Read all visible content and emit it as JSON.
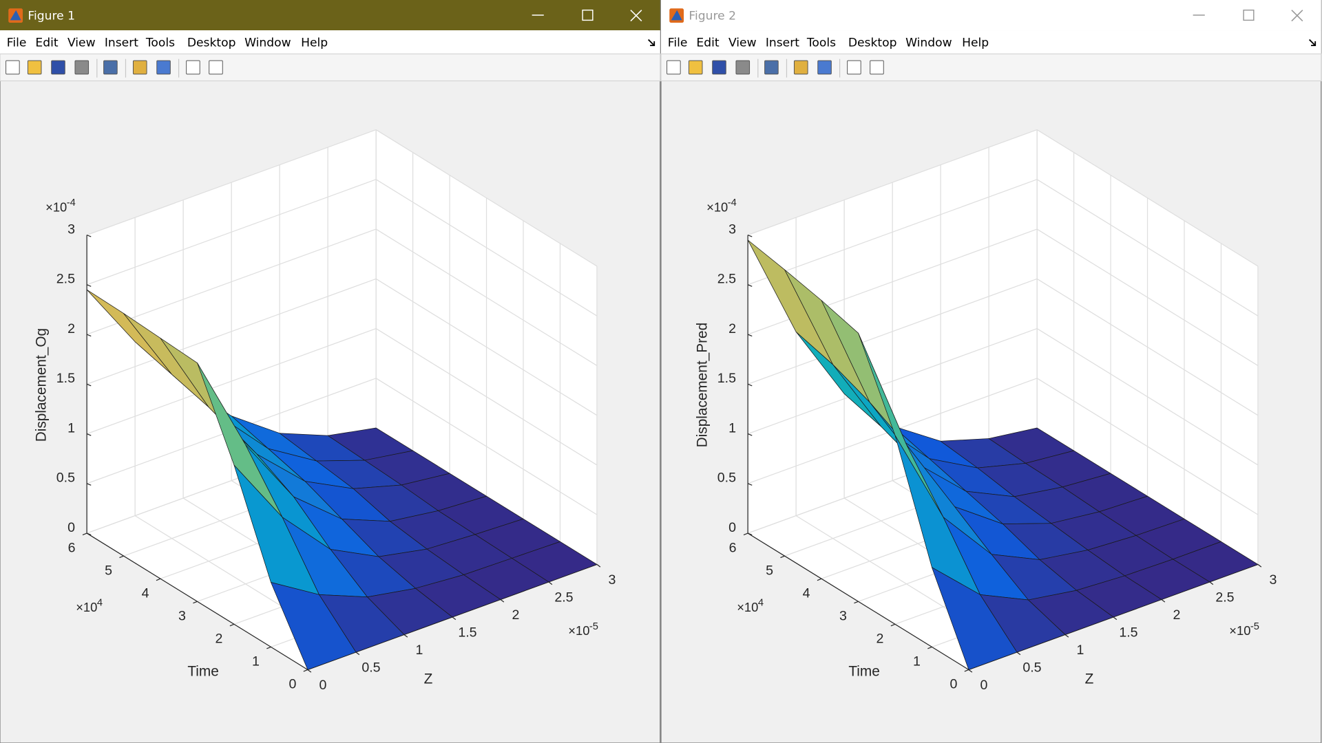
{
  "windows": [
    {
      "title": "Figure 1",
      "title_bar": {
        "color": "#6b6219",
        "text_color": "#ffffff",
        "icon_color": "#ffffff"
      },
      "menu": [
        "File",
        "Edit",
        "View",
        "Insert",
        "Tools",
        "Desktop",
        "Window",
        "Help"
      ],
      "chart_data": {
        "type": "surface",
        "xlabel": "Z",
        "ylabel": "Time",
        "zlabel": "Displacement_Og",
        "x": [
          0,
          0.5,
          1,
          1.5,
          2,
          2.5,
          3
        ],
        "y": [
          0,
          1,
          2,
          3,
          4,
          5,
          6
        ],
        "values": [
          [
            0,
            0,
            0,
            0,
            0,
            0,
            0
          ],
          [
            0.65,
            0.35,
            0.15,
            0.06,
            0.02,
            0.01,
            0
          ],
          [
            1.6,
            0.9,
            0.4,
            0.15,
            0.05,
            0.02,
            0
          ],
          [
            2.4,
            1.4,
            0.7,
            0.3,
            0.1,
            0.03,
            0
          ],
          [
            2.42,
            1.55,
            0.9,
            0.45,
            0.2,
            0.06,
            0
          ],
          [
            2.44,
            1.65,
            1.05,
            0.55,
            0.25,
            0.08,
            0
          ],
          [
            2.45,
            1.75,
            1.15,
            0.65,
            0.3,
            0.1,
            0
          ]
        ],
        "xlim": [
          0,
          3
        ],
        "ylim": [
          0,
          6
        ],
        "zlim": [
          0,
          3
        ],
        "xticks": [
          0,
          0.5,
          1,
          1.5,
          2,
          2.5,
          3
        ],
        "yticks": [
          0,
          1,
          2,
          3,
          4,
          5,
          6
        ],
        "zticks": [
          0,
          0.5,
          1,
          1.5,
          2,
          2.5,
          3
        ],
        "x_exponent": {
          "base": "×10",
          "power": "-5"
        },
        "y_exponent": {
          "base": "×10",
          "power": "4"
        },
        "z_exponent": {
          "base": "×10",
          "power": "-4"
        },
        "colormap": "parula",
        "edge_color": "#1a1a1a",
        "grid": true
      }
    },
    {
      "title": "Figure 2",
      "title_bar": {
        "color": "#ffffff",
        "text_color": "#999999",
        "icon_color": "#999999"
      },
      "menu": [
        "File",
        "Edit",
        "View",
        "Insert",
        "Tools",
        "Desktop",
        "Window",
        "Help"
      ],
      "chart_data": {
        "type": "surface",
        "xlabel": "Z",
        "ylabel": "Time",
        "zlabel": "Displacement_Pred",
        "x": [
          0,
          0.5,
          1,
          1.5,
          2,
          2.5,
          3
        ],
        "y": [
          0,
          1,
          2,
          3,
          4,
          5,
          6
        ],
        "values": [
          [
            0,
            0,
            0,
            0,
            0,
            0,
            0
          ],
          [
            0.8,
            0.35,
            0.12,
            0.04,
            0.01,
            0,
            0
          ],
          [
            1.9,
            0.9,
            0.35,
            0.12,
            0.04,
            0.01,
            0
          ],
          [
            2.7,
            1.4,
            0.6,
            0.25,
            0.08,
            0.02,
            0
          ],
          [
            2.8,
            1.6,
            0.8,
            0.35,
            0.12,
            0.04,
            0
          ],
          [
            2.88,
            1.75,
            0.95,
            0.45,
            0.18,
            0.05,
            0
          ],
          [
            2.95,
            1.85,
            1.05,
            0.55,
            0.22,
            0.07,
            0
          ]
        ],
        "xlim": [
          0,
          3
        ],
        "ylim": [
          0,
          6
        ],
        "zlim": [
          0,
          3
        ],
        "xticks": [
          0,
          0.5,
          1,
          1.5,
          2,
          2.5,
          3
        ],
        "yticks": [
          0,
          1,
          2,
          3,
          4,
          5,
          6
        ],
        "zticks": [
          0,
          0.5,
          1,
          1.5,
          2,
          2.5,
          3
        ],
        "x_exponent": {
          "base": "×10",
          "power": "-5"
        },
        "y_exponent": {
          "base": "×10",
          "power": "4"
        },
        "z_exponent": {
          "base": "×10",
          "power": "-4"
        },
        "colormap": "parula",
        "edge_color": "#1a1a1a",
        "grid": true
      }
    }
  ]
}
